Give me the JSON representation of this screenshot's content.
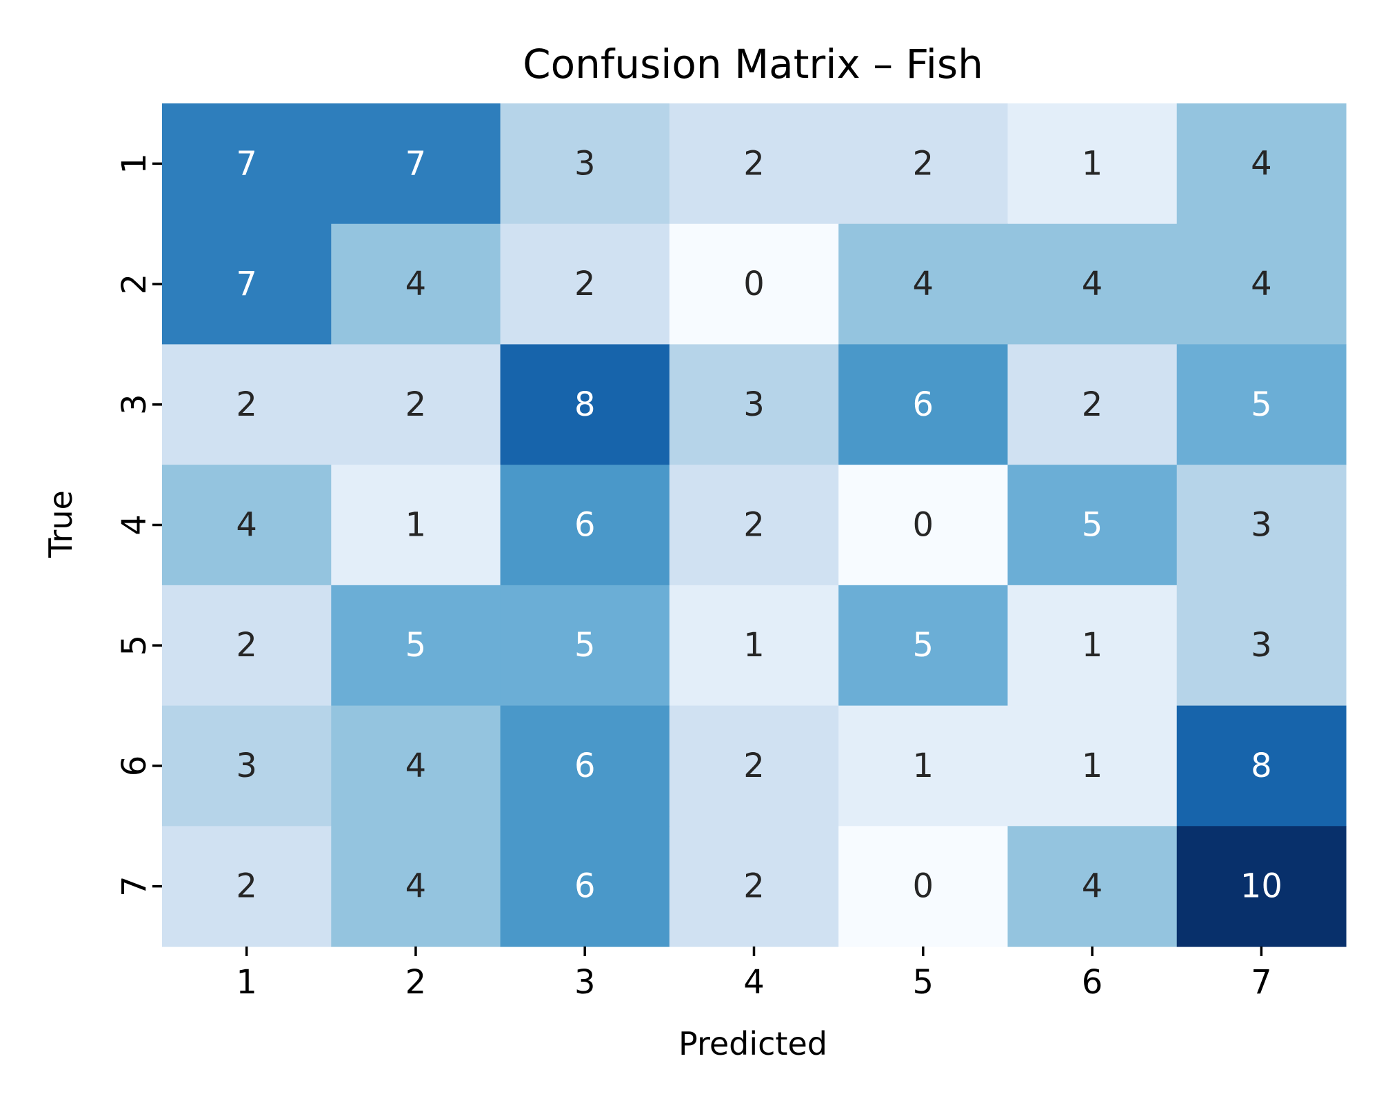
{
  "chart_data": {
    "type": "heatmap",
    "title": "Confusion Matrix – Fish",
    "xlabel": "Predicted",
    "ylabel": "True",
    "x_categories": [
      "1",
      "2",
      "3",
      "4",
      "5",
      "6",
      "7"
    ],
    "y_categories": [
      "1",
      "2",
      "3",
      "4",
      "5",
      "6",
      "7"
    ],
    "values": [
      [
        7,
        7,
        3,
        2,
        2,
        1,
        4
      ],
      [
        7,
        4,
        2,
        0,
        4,
        4,
        4
      ],
      [
        2,
        2,
        8,
        3,
        6,
        2,
        5
      ],
      [
        4,
        1,
        6,
        2,
        0,
        5,
        3
      ],
      [
        2,
        5,
        5,
        1,
        5,
        1,
        3
      ],
      [
        3,
        4,
        6,
        2,
        1,
        1,
        8
      ],
      [
        2,
        4,
        6,
        2,
        0,
        4,
        10
      ]
    ],
    "value_range": [
      0,
      10
    ],
    "colormap": "Blues",
    "annotated": true,
    "colorbar": false
  }
}
